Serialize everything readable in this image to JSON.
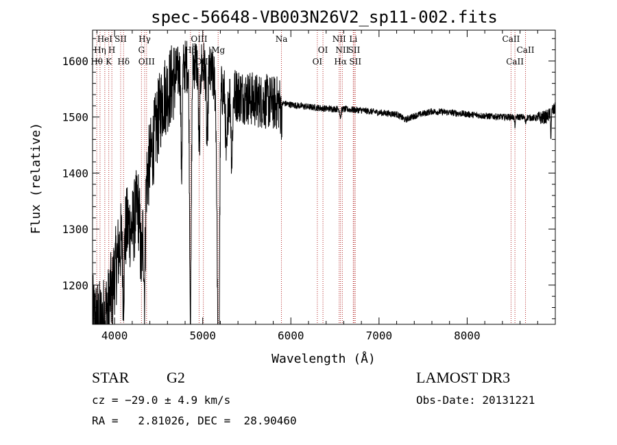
{
  "chart_data": {
    "type": "line",
    "title": "spec-56648-VB003N26V2_sp11-002.fits",
    "xlabel": "Wavelength (Å)",
    "ylabel": "Flux (relative)",
    "xlim": [
      3750,
      9000
    ],
    "ylim": [
      1130,
      1655
    ],
    "xticks": [
      4000,
      5000,
      6000,
      7000,
      8000
    ],
    "yticks": [
      1200,
      1300,
      1400,
      1500,
      1600
    ],
    "x_minor_step": 200,
    "y_minor_step": 20,
    "grid": false,
    "colors": {
      "spectrum": "#000000",
      "lines": "#b22222",
      "axes": "#000000"
    },
    "series": [
      {
        "anchors": [
          [
            3750,
            1145
          ],
          [
            3800,
            1138
          ],
          [
            3850,
            1135
          ],
          [
            3900,
            1150
          ],
          [
            3950,
            1185
          ],
          [
            4000,
            1220
          ],
          [
            4050,
            1265
          ],
          [
            4100,
            1290
          ],
          [
            4150,
            1305
          ],
          [
            4200,
            1300
          ],
          [
            4250,
            1335
          ],
          [
            4300,
            1350
          ],
          [
            4350,
            1380
          ],
          [
            4400,
            1420
          ],
          [
            4450,
            1460
          ],
          [
            4500,
            1500
          ],
          [
            4550,
            1535
          ],
          [
            4600,
            1545
          ],
          [
            4650,
            1560
          ],
          [
            4700,
            1575
          ],
          [
            4750,
            1585
          ],
          [
            4800,
            1590
          ],
          [
            4850,
            1595
          ],
          [
            4900,
            1598
          ],
          [
            4950,
            1595
          ],
          [
            5000,
            1590
          ],
          [
            5050,
            1585
          ],
          [
            5100,
            1575
          ],
          [
            5150,
            1560
          ],
          [
            5200,
            1550
          ],
          [
            5250,
            1545
          ],
          [
            5300,
            1540
          ],
          [
            5400,
            1540
          ],
          [
            5500,
            1535
          ],
          [
            5600,
            1530
          ],
          [
            5700,
            1528
          ],
          [
            5800,
            1525
          ],
          [
            5900,
            1525
          ],
          [
            6000,
            1522
          ],
          [
            6100,
            1520
          ],
          [
            6200,
            1518
          ],
          [
            6400,
            1515
          ],
          [
            6600,
            1514
          ],
          [
            6800,
            1512
          ],
          [
            7000,
            1508
          ],
          [
            7200,
            1505
          ],
          [
            7300,
            1495
          ],
          [
            7400,
            1502
          ],
          [
            7600,
            1510
          ],
          [
            7800,
            1508
          ],
          [
            8000,
            1505
          ],
          [
            8200,
            1502
          ],
          [
            8400,
            1500
          ],
          [
            8600,
            1500
          ],
          [
            8800,
            1498
          ],
          [
            8900,
            1500
          ],
          [
            9000,
            1515
          ]
        ],
        "dips": [
          [
            4861,
            1150,
            14
          ],
          [
            5172,
            1240,
            18
          ],
          [
            5183,
            1270,
            14
          ],
          [
            4340,
            1200,
            12
          ],
          [
            4101,
            1195,
            12
          ],
          [
            3970,
            1170,
            10
          ],
          [
            3934,
            1160,
            10
          ],
          [
            4305,
            1240,
            20
          ],
          [
            5270,
            1420,
            14
          ],
          [
            5330,
            1430,
            12
          ],
          [
            4760,
            1400,
            10
          ],
          [
            4960,
            1440,
            12
          ],
          [
            5050,
            1450,
            12
          ],
          [
            5890,
            1505,
            10
          ],
          [
            6563,
            1500,
            10
          ],
          [
            8542,
            1485,
            8
          ],
          [
            8662,
            1490,
            8
          ],
          [
            8950,
            1470,
            6
          ]
        ]
      }
    ],
    "lines": [
      {
        "label": "HeI",
        "x": 3889,
        "row": 1
      },
      {
        "label": "SII",
        "x": 4069,
        "row": 1
      },
      {
        "label": "Hη",
        "x": 3835,
        "row": 2
      },
      {
        "label": "H",
        "x": 3969,
        "row": 2
      },
      {
        "label": "Hθ",
        "x": 3798,
        "row": 3
      },
      {
        "label": "K",
        "x": 3934,
        "row": 3
      },
      {
        "label": "Hδ",
        "x": 4102,
        "row": 3
      },
      {
        "label": "Hγ",
        "x": 4341,
        "row": 1
      },
      {
        "label": "G",
        "x": 4305,
        "row": 2
      },
      {
        "label": "OIII",
        "x": 4363,
        "row": 3
      },
      {
        "label": "OIII",
        "x": 4959,
        "row": 1
      },
      {
        "label": "Hβ",
        "x": 4861,
        "row": 2
      },
      {
        "label": "OIII",
        "x": 5007,
        "row": 3
      },
      {
        "label": "Mg",
        "x": 5175,
        "row": 2
      },
      {
        "label": "Na",
        "x": 5893,
        "row": 1
      },
      {
        "label": "OI",
        "x": 6364,
        "row": 2
      },
      {
        "label": "OI",
        "x": 6300,
        "row": 3
      },
      {
        "label": "NII",
        "x": 6548,
        "row": 1
      },
      {
        "label": "NII",
        "x": 6584,
        "row": 2
      },
      {
        "label": "Hα",
        "x": 6563,
        "row": 3
      },
      {
        "label": "Li",
        "x": 6708,
        "row": 1
      },
      {
        "label": "SII",
        "x": 6717,
        "row": 2
      },
      {
        "label": "SII",
        "x": 6731,
        "row": 3
      },
      {
        "label": "CaII",
        "x": 8498,
        "row": 1
      },
      {
        "label": "CaII",
        "x": 8662,
        "row": 2
      },
      {
        "label": "CaII",
        "x": 8542,
        "row": 3
      }
    ]
  },
  "info": {
    "object_class": "STAR",
    "subclass": "G2",
    "survey": "LAMOST DR3",
    "cz": "cz = −29.0 ± 4.9 km/s",
    "obs_date": "Obs-Date: 20131221",
    "coords": "RA =   2.81026, DEC =  28.90460"
  }
}
